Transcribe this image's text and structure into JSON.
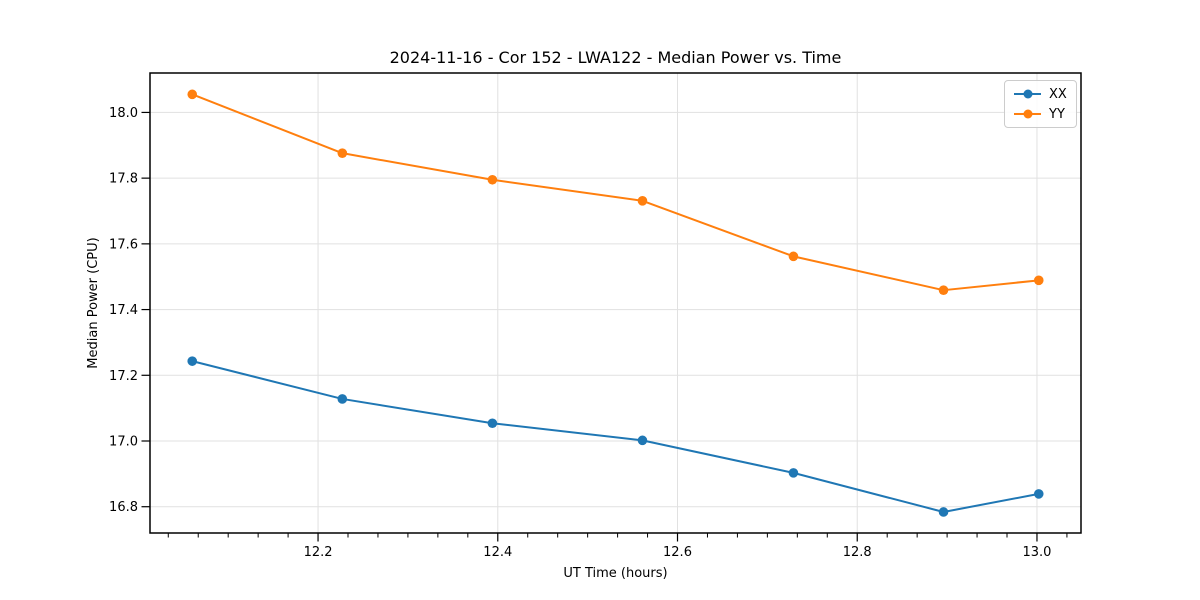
{
  "chart_data": {
    "type": "line",
    "title": "2024-11-16 - Cor 152 - LWA122 - Median Power vs. Time",
    "xlabel": "UT Time (hours)",
    "ylabel": "Median Power (CPU)",
    "xlim": [
      12.013,
      13.049
    ],
    "ylim": [
      16.72,
      18.12
    ],
    "x_ticks": [
      12.2,
      12.4,
      12.6,
      12.8,
      13.0
    ],
    "y_ticks": [
      16.8,
      17.0,
      17.2,
      17.4,
      17.6,
      17.8,
      18.0
    ],
    "x_minor_step": 0.0333333,
    "tick_decimals": 1,
    "grid": true,
    "legend_position": "upper right",
    "x": [
      12.06,
      12.227,
      12.394,
      12.561,
      12.729,
      12.896,
      13.002
    ],
    "series": [
      {
        "name": "XX",
        "color": "#1f77b4",
        "values": [
          17.243,
          17.128,
          17.054,
          17.002,
          16.903,
          16.784,
          16.839
        ]
      },
      {
        "name": "YY",
        "color": "#ff7f0e",
        "values": [
          18.055,
          17.876,
          17.795,
          17.731,
          17.562,
          17.459,
          17.489
        ]
      }
    ],
    "colors": {
      "grid": "#e1e1e1",
      "spine": "#000000",
      "tick": "#000000",
      "background": "#ffffff"
    }
  }
}
